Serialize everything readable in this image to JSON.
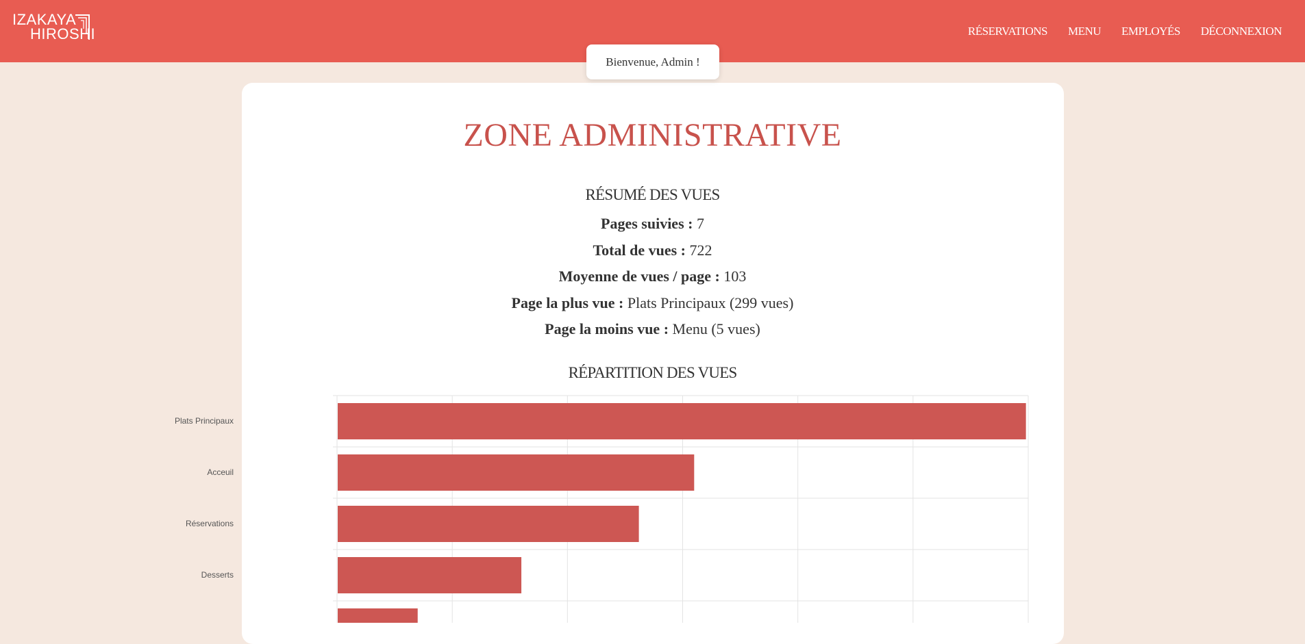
{
  "header": {
    "logo": {
      "line1": "IZAKAYA",
      "line2": "HIROSHI"
    },
    "nav": [
      {
        "label": "RÉSERVATIONS"
      },
      {
        "label": "MENU"
      },
      {
        "label": "EMPLOYÉS"
      },
      {
        "label": "DÉCONNEXION"
      }
    ]
  },
  "welcome": "Bienvenue, Admin !",
  "main": {
    "title": "ZONE ADMINISTRATIVE",
    "summary_title": "RÉSUMÉ DES VUES",
    "stats": [
      {
        "label": "Pages suivies :",
        "value": "7"
      },
      {
        "label": "Total de vues :",
        "value": "722"
      },
      {
        "label": "Moyenne de vues / page :",
        "value": "103"
      },
      {
        "label": "Page la plus vue :",
        "value": "Plats Principaux (299 vues)"
      },
      {
        "label": "Page la moins vue :",
        "value": "Menu (5 vues)"
      }
    ],
    "distribution_title": "RÉPARTITION DES VUES"
  },
  "colors": {
    "header": "#e85c52",
    "accent": "#c8524c",
    "bar": "#cd5753",
    "background": "#f5e8df"
  },
  "chart_data": {
    "type": "bar",
    "orientation": "horizontal",
    "categories": [
      "Plats Principaux",
      "Acceuil",
      "Réservations",
      "Desserts",
      ""
    ],
    "values": [
      299,
      155,
      131,
      80,
      35
    ],
    "xlim": [
      0,
      300
    ],
    "grid": true
  }
}
